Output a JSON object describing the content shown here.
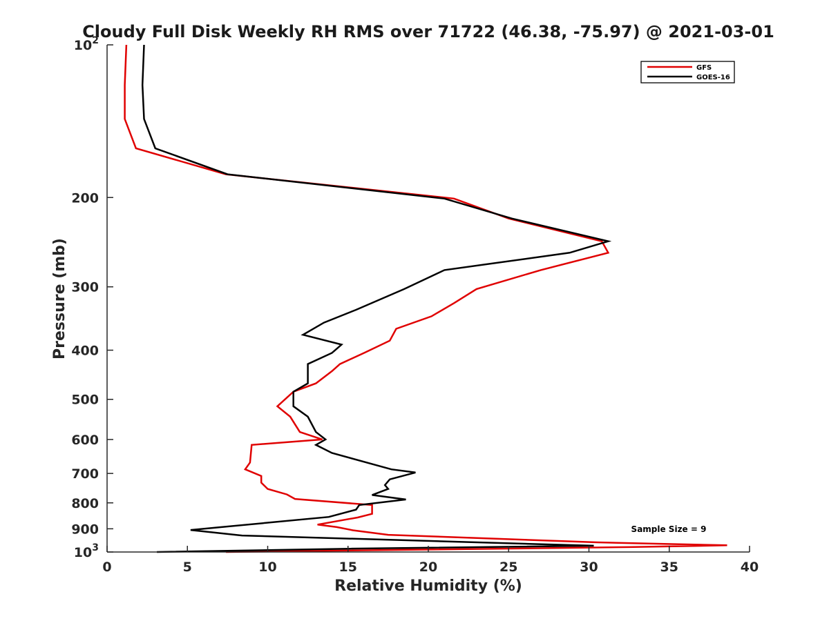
{
  "chart_data": {
    "type": "line",
    "title": "Cloudy Full Disk Weekly RH RMS over 71722 (46.38, -75.97) @ 2021-03-01",
    "xlabel": "Relative Humidity (%)",
    "ylabel": "Pressure (mb)",
    "xlim": [
      0,
      40
    ],
    "ylim": [
      100,
      1000
    ],
    "yscale": "log",
    "y_reversed": true,
    "x_ticks": [
      "0",
      "5",
      "10",
      "15",
      "20",
      "25",
      "30",
      "35",
      "40"
    ],
    "y_ticks": [
      {
        "value": 100,
        "base": "10",
        "exp": "2"
      },
      {
        "value": 200,
        "label": "200"
      },
      {
        "value": 300,
        "label": "300"
      },
      {
        "value": 400,
        "label": "400"
      },
      {
        "value": 500,
        "label": "500"
      },
      {
        "value": 600,
        "label": "600"
      },
      {
        "value": 700,
        "label": "700"
      },
      {
        "value": 800,
        "label": "800"
      },
      {
        "value": 900,
        "label": "900"
      },
      {
        "value": 1000,
        "base": "10",
        "exp": "3"
      }
    ],
    "legend_position": "top-right",
    "annotation": "Sample Size = 9",
    "series": [
      {
        "name": "GFS",
        "color": "#e00000",
        "points": [
          [
            1.2,
            100
          ],
          [
            1.1,
            120
          ],
          [
            1.1,
            140
          ],
          [
            1.8,
            160
          ],
          [
            7.4,
            180
          ],
          [
            21.6,
            201
          ],
          [
            25.0,
            220
          ],
          [
            30.8,
            244
          ],
          [
            31.2,
            257
          ],
          [
            27.0,
            278
          ],
          [
            23.0,
            303
          ],
          [
            21.6,
            323
          ],
          [
            20.2,
            343
          ],
          [
            18.0,
            363
          ],
          [
            17.6,
            383
          ],
          [
            16.0,
            405
          ],
          [
            14.5,
            426
          ],
          [
            14.0,
            440
          ],
          [
            13.0,
            465
          ],
          [
            11.6,
            483
          ],
          [
            10.6,
            516
          ],
          [
            11.4,
            541
          ],
          [
            12.0,
            580
          ],
          [
            13.4,
            600
          ],
          [
            9.0,
            615
          ],
          [
            8.9,
            666
          ],
          [
            8.6,
            687
          ],
          [
            9.6,
            708
          ],
          [
            9.6,
            730
          ],
          [
            10.0,
            751
          ],
          [
            11.2,
            770
          ],
          [
            11.7,
            786
          ],
          [
            16.5,
            808
          ],
          [
            16.5,
            841
          ],
          [
            15.6,
            855
          ],
          [
            13.1,
            883
          ],
          [
            14.3,
            893
          ],
          [
            15.3,
            906
          ],
          [
            17.5,
            925
          ],
          [
            30.5,
            957
          ],
          [
            38.6,
            970
          ],
          [
            32.5,
            978
          ],
          [
            7.4,
            1000
          ]
        ]
      },
      {
        "name": "GOES-16",
        "color": "#000000",
        "points": [
          [
            2.3,
            100
          ],
          [
            2.2,
            120
          ],
          [
            2.3,
            140
          ],
          [
            3.0,
            160
          ],
          [
            7.5,
            180
          ],
          [
            21.0,
            201
          ],
          [
            25.2,
            220
          ],
          [
            31.2,
            244
          ],
          [
            28.8,
            257
          ],
          [
            21.0,
            278
          ],
          [
            18.5,
            303
          ],
          [
            15.5,
            333
          ],
          [
            13.5,
            353
          ],
          [
            12.2,
            373
          ],
          [
            14.6,
            390
          ],
          [
            14.0,
            405
          ],
          [
            12.5,
            426
          ],
          [
            12.5,
            465
          ],
          [
            11.6,
            483
          ],
          [
            11.6,
            516
          ],
          [
            12.5,
            541
          ],
          [
            13.0,
            580
          ],
          [
            13.6,
            600
          ],
          [
            13.0,
            615
          ],
          [
            14.0,
            638
          ],
          [
            17.7,
            687
          ],
          [
            19.2,
            697
          ],
          [
            17.6,
            719
          ],
          [
            17.3,
            738
          ],
          [
            17.5,
            751
          ],
          [
            16.5,
            772
          ],
          [
            18.6,
            788
          ],
          [
            15.7,
            808
          ],
          [
            15.5,
            825
          ],
          [
            13.8,
            853
          ],
          [
            5.2,
            905
          ],
          [
            8.4,
            928
          ],
          [
            30.3,
            972
          ],
          [
            15.1,
            985
          ],
          [
            3.1,
            1000
          ]
        ]
      }
    ]
  }
}
